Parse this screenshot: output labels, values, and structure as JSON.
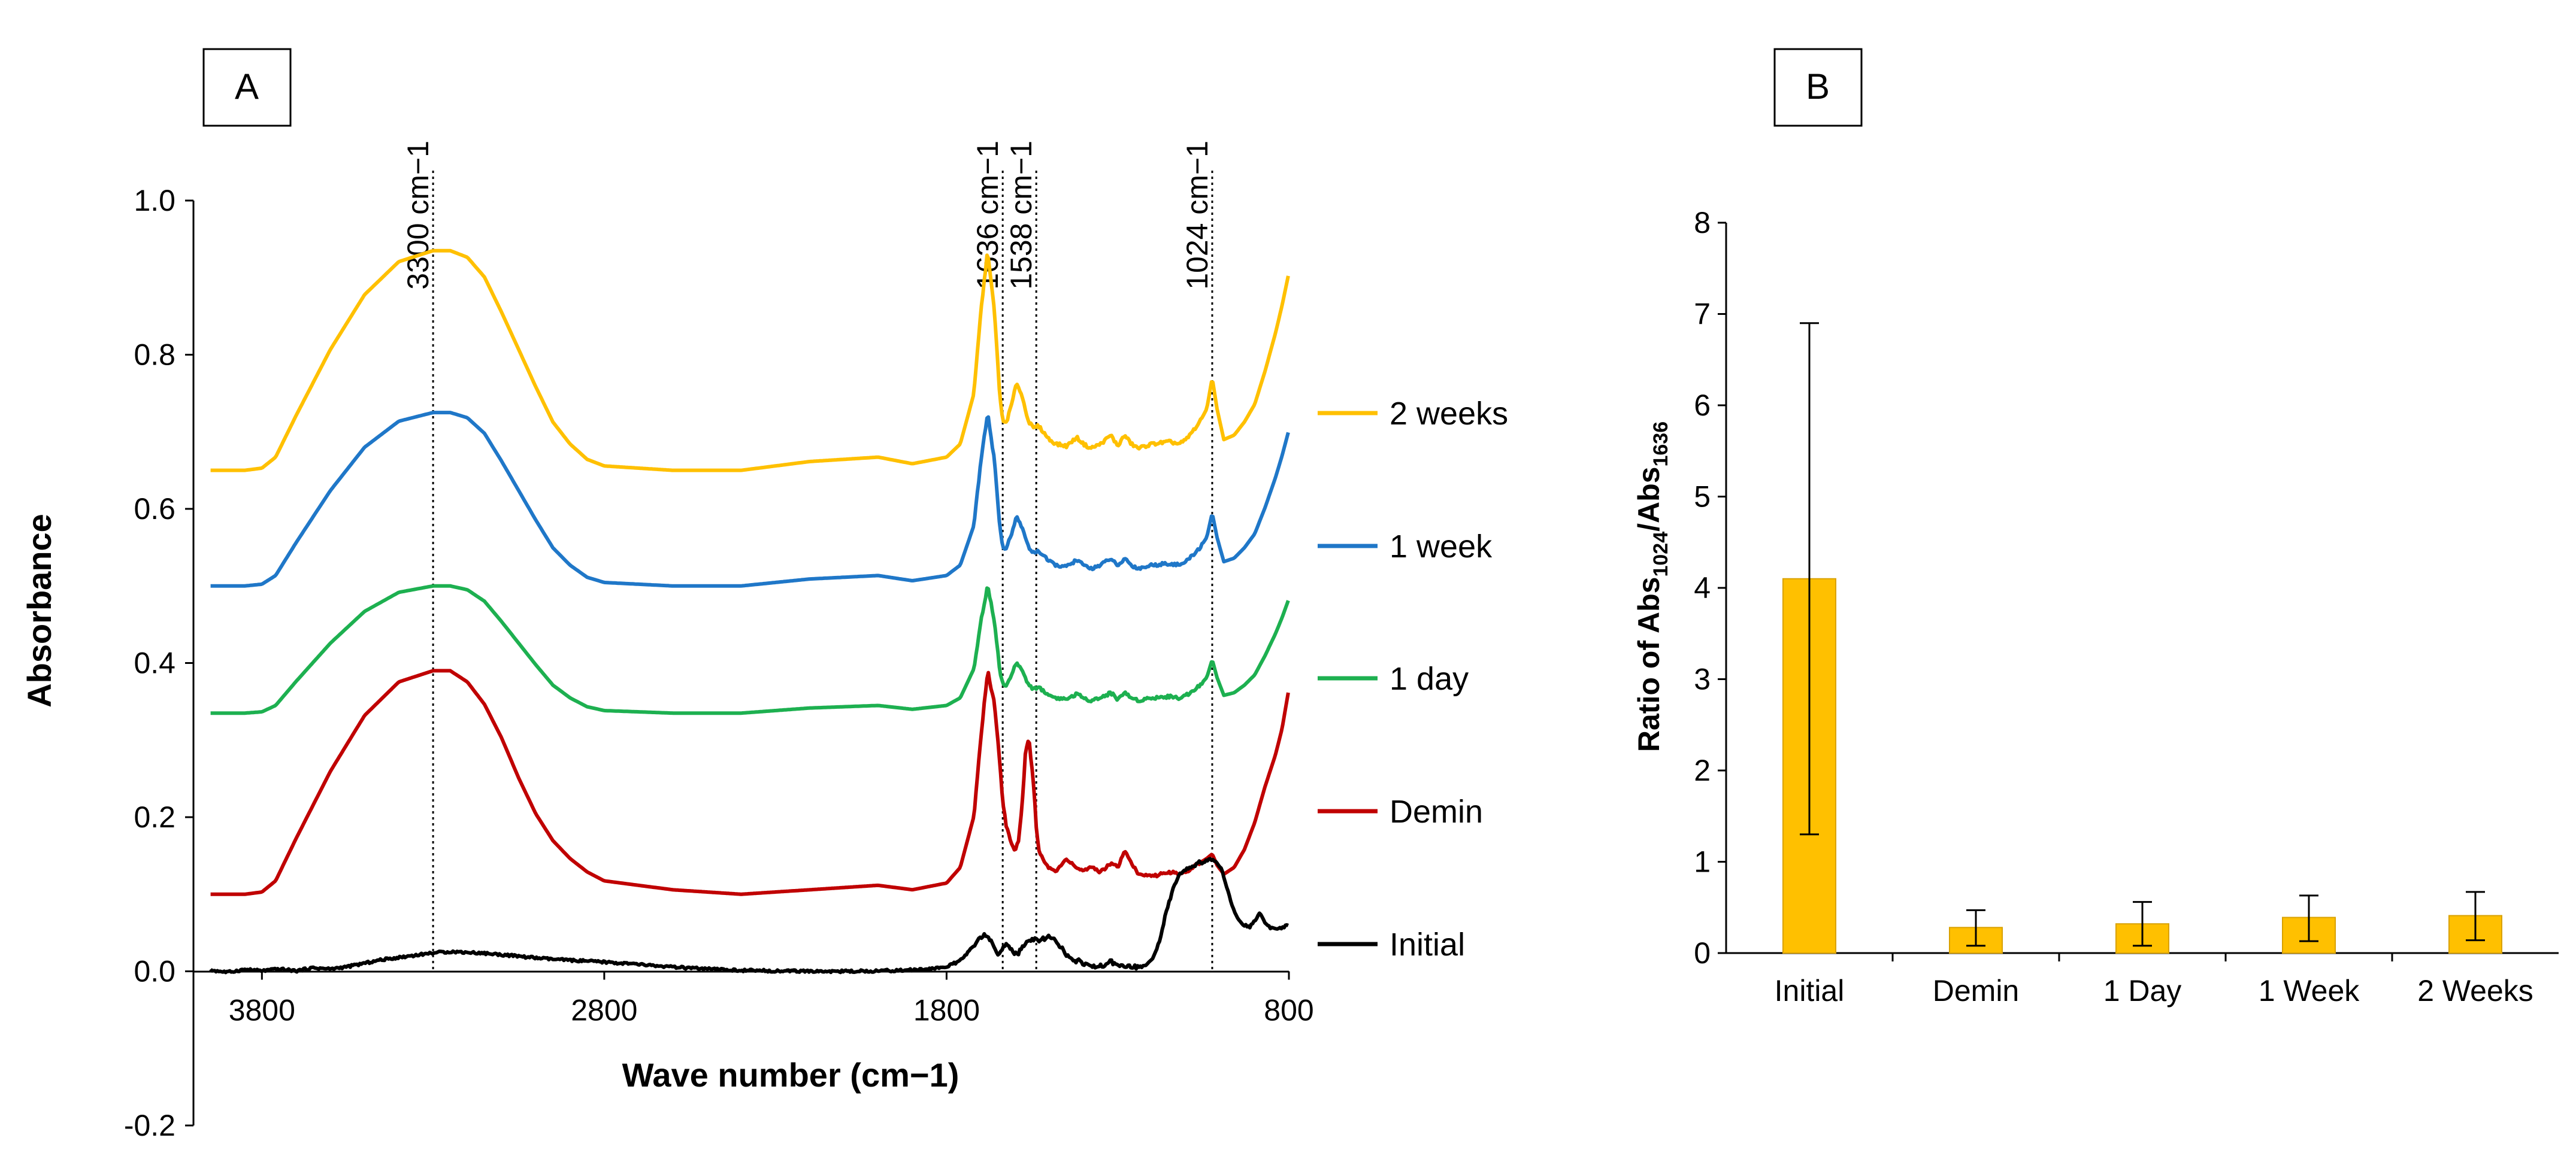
{
  "chart_data": [
    {
      "panel": "A",
      "type": "line",
      "xlabel": "Wave number (cm−1)",
      "ylabel": "Absorbance",
      "xlim": [
        4000,
        800
      ],
      "ylim": [
        -0.2,
        1.0
      ],
      "x_ticks": [
        "3800",
        "2800",
        "1800",
        "800"
      ],
      "x_tick_values": [
        3800,
        2800,
        1800,
        800
      ],
      "y_ticks": [
        "1.0",
        "0.8",
        "0.6",
        "0.4",
        "0.2",
        "0.0",
        "-0.2"
      ],
      "y_tick_values": [
        1.0,
        0.8,
        0.6,
        0.4,
        0.2,
        0.0,
        -0.2
      ],
      "legend_position": "right",
      "annotations": [
        {
          "label": "3300 cm−1",
          "x": 3300
        },
        {
          "label": "1636 cm−1",
          "x": 1636
        },
        {
          "label": "1538 cm−1",
          "x": 1538
        },
        {
          "label": "1024 cm−1",
          "x": 1024
        }
      ],
      "series": [
        {
          "name": "2 weeks",
          "color": "#FFC000",
          "offset": 0.65,
          "scale": 0.285
        },
        {
          "name": "1 week",
          "color": "#1F77C8",
          "offset": 0.5,
          "scale": 0.225
        },
        {
          "name": "1 day",
          "color": "#1DB050",
          "offset": 0.335,
          "scale": 0.165
        },
        {
          "name": "Demin",
          "color": "#C00000",
          "offset": 0.1,
          "scale": 0.29,
          "profile": "demin"
        },
        {
          "name": "Initial",
          "color": "#000000",
          "offset": 0.0,
          "scale": 0.03,
          "profile": "initial"
        }
      ],
      "profiles": {
        "standard": {
          "x": [
            4000,
            3950,
            3850,
            3800,
            3760,
            3700,
            3600,
            3500,
            3400,
            3300,
            3250,
            3200,
            3150,
            3100,
            3050,
            3000,
            2950,
            2900,
            2850,
            2800,
            2600,
            2400,
            2200,
            2000,
            1900,
            1800,
            1760,
            1720,
            1700,
            1680,
            1660,
            1645,
            1636,
            1625,
            1610,
            1595,
            1580,
            1560,
            1545,
            1538,
            1530,
            1515,
            1500,
            1480,
            1450,
            1420,
            1400,
            1380,
            1350,
            1320,
            1300,
            1280,
            1260,
            1240,
            1200,
            1150,
            1120,
            1100,
            1080,
            1060,
            1040,
            1024,
            1010,
            990,
            960,
            930,
            900,
            870,
            840,
            820,
            800
          ],
          "y": [
            0.0,
            0.0,
            0.0,
            0.01,
            0.06,
            0.25,
            0.55,
            0.8,
            0.95,
            1.0,
            1.0,
            0.97,
            0.88,
            0.72,
            0.55,
            0.38,
            0.22,
            0.12,
            0.05,
            0.02,
            0.0,
            0.0,
            0.04,
            0.06,
            0.03,
            0.06,
            0.12,
            0.35,
            0.72,
            1.0,
            0.72,
            0.35,
            0.22,
            0.22,
            0.3,
            0.4,
            0.34,
            0.22,
            0.19,
            0.2,
            0.2,
            0.17,
            0.14,
            0.12,
            0.11,
            0.15,
            0.12,
            0.1,
            0.12,
            0.16,
            0.11,
            0.16,
            0.12,
            0.1,
            0.12,
            0.13,
            0.12,
            0.14,
            0.18,
            0.22,
            0.28,
            0.42,
            0.28,
            0.14,
            0.16,
            0.22,
            0.3,
            0.45,
            0.62,
            0.75,
            0.9
          ]
        },
        "demin": {
          "x": [
            4000,
            3950,
            3850,
            3800,
            3760,
            3700,
            3600,
            3500,
            3400,
            3300,
            3250,
            3200,
            3150,
            3100,
            3050,
            3000,
            2950,
            2900,
            2850,
            2800,
            2600,
            2400,
            2200,
            2000,
            1900,
            1800,
            1760,
            1720,
            1700,
            1680,
            1660,
            1645,
            1636,
            1625,
            1610,
            1600,
            1590,
            1580,
            1570,
            1560,
            1545,
            1538,
            1530,
            1515,
            1500,
            1480,
            1450,
            1420,
            1400,
            1380,
            1350,
            1320,
            1300,
            1280,
            1260,
            1240,
            1200,
            1150,
            1120,
            1100,
            1080,
            1060,
            1040,
            1024,
            1010,
            990,
            960,
            930,
            900,
            870,
            840,
            820,
            800
          ],
          "y": [
            0.0,
            0.0,
            0.0,
            0.01,
            0.06,
            0.25,
            0.55,
            0.8,
            0.95,
            1.0,
            1.0,
            0.95,
            0.85,
            0.7,
            0.52,
            0.36,
            0.24,
            0.16,
            0.1,
            0.06,
            0.02,
            0.0,
            0.02,
            0.04,
            0.02,
            0.05,
            0.12,
            0.35,
            0.7,
            1.0,
            0.85,
            0.6,
            0.42,
            0.3,
            0.22,
            0.2,
            0.24,
            0.38,
            0.62,
            0.7,
            0.48,
            0.3,
            0.2,
            0.14,
            0.12,
            0.1,
            0.16,
            0.12,
            0.1,
            0.12,
            0.1,
            0.14,
            0.12,
            0.2,
            0.14,
            0.09,
            0.08,
            0.1,
            0.09,
            0.1,
            0.12,
            0.14,
            0.16,
            0.18,
            0.13,
            0.09,
            0.12,
            0.2,
            0.32,
            0.48,
            0.62,
            0.74,
            0.92
          ]
        },
        "initial": {
          "x": [
            4000,
            3950,
            3900,
            3850,
            3800,
            3750,
            3700,
            3650,
            3600,
            3550,
            3500,
            3450,
            3400,
            3350,
            3300,
            3250,
            3200,
            3150,
            3100,
            3050,
            3000,
            2950,
            2900,
            2850,
            2800,
            2700,
            2600,
            2500,
            2400,
            2300,
            2200,
            2100,
            2000,
            1900,
            1850,
            1800,
            1760,
            1720,
            1700,
            1690,
            1680,
            1670,
            1660,
            1650,
            1640,
            1630,
            1620,
            1610,
            1600,
            1590,
            1580,
            1570,
            1560,
            1540,
            1520,
            1500,
            1480,
            1470,
            1460,
            1450,
            1440,
            1420,
            1400,
            1380,
            1360,
            1340,
            1320,
            1300,
            1280,
            1260,
            1240,
            1220,
            1200,
            1180,
            1160,
            1140,
            1120,
            1100,
            1080,
            1060,
            1040,
            1024,
            1010,
            1000,
            990,
            975,
            960,
            945,
            930,
            915,
            900,
            885,
            870,
            855,
            840,
            820,
            800
          ],
          "y": [
            0.0,
            0.05,
            -0.04,
            0.08,
            0.02,
            0.1,
            0.02,
            0.15,
            0.1,
            0.2,
            0.35,
            0.5,
            0.6,
            0.7,
            0.8,
            0.85,
            0.82,
            0.78,
            0.72,
            0.65,
            0.58,
            0.52,
            0.48,
            0.44,
            0.4,
            0.3,
            0.18,
            0.1,
            0.04,
            0.02,
            0.0,
            0.0,
            0.02,
            0.06,
            0.1,
            0.2,
            0.45,
            1.1,
            1.45,
            1.55,
            1.5,
            1.3,
            0.95,
            0.8,
            0.9,
            1.1,
            1.15,
            0.9,
            0.75,
            0.8,
            1.0,
            1.2,
            1.3,
            1.35,
            1.4,
            1.45,
            1.35,
            1.1,
            0.95,
            0.7,
            0.55,
            0.45,
            0.35,
            0.25,
            0.2,
            0.25,
            0.4,
            0.3,
            0.2,
            0.2,
            0.18,
            0.25,
            0.5,
            1.2,
            2.5,
            3.5,
            4.1,
            4.4,
            4.6,
            4.7,
            4.8,
            4.85,
            4.7,
            4.5,
            4.1,
            3.3,
            2.6,
            2.2,
            2.0,
            1.9,
            2.2,
            2.5,
            2.1,
            1.9,
            1.8,
            1.9,
            2.0
          ]
        }
      }
    },
    {
      "panel": "B",
      "type": "bar",
      "categories": [
        "Initial",
        "Demin",
        "1 Day",
        "1 Week",
        "2 Weeks"
      ],
      "values": [
        4.1,
        0.28,
        0.32,
        0.39,
        0.41
      ],
      "error_low": [
        1.3,
        0.08,
        0.08,
        0.13,
        0.14
      ],
      "error_high": [
        6.9,
        0.47,
        0.56,
        0.63,
        0.67
      ],
      "ylabel_main": "Ratio of Abs",
      "ylabel_sub1": "1024",
      "ylabel_mid": "/Abs",
      "ylabel_sub2": "1636",
      "ylim": [
        0,
        8
      ],
      "y_ticks": [
        "0",
        "1",
        "2",
        "3",
        "4",
        "5",
        "6",
        "7",
        "8"
      ],
      "y_tick_values": [
        0,
        1,
        2,
        3,
        4,
        5,
        6,
        7,
        8
      ],
      "bar_color": "#FFC000",
      "bar_stroke": "#D9A100"
    }
  ],
  "panels": {
    "a_label": "A",
    "b_label": "B"
  }
}
